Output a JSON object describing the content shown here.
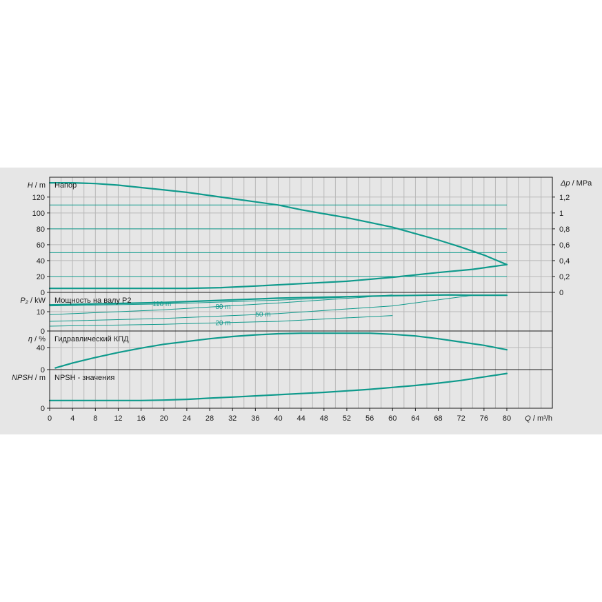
{
  "chart_data": {
    "type": "line",
    "x_axis": {
      "label_italic": "Q",
      "label_unit": "/ m³/h",
      "range": [
        0,
        80
      ],
      "ticks": [
        0,
        4,
        8,
        12,
        16,
        20,
        24,
        28,
        32,
        36,
        40,
        44,
        48,
        52,
        56,
        60,
        64,
        68,
        72,
        76,
        80
      ],
      "minor_step": 2
    },
    "grid": true,
    "panels": [
      {
        "id": "head",
        "title": "Напор",
        "y_label_italic": "H",
        "y_label_unit": "/ m",
        "ylim": [
          0,
          145
        ],
        "yticks": [
          0,
          20,
          40,
          60,
          80,
          100,
          120
        ],
        "right_axis": {
          "label_italic": "Δp",
          "label_unit": "/ MPa",
          "ylim": [
            0,
            1.45
          ],
          "ticks": [
            "0",
            "0,2",
            "0,4",
            "0,6",
            "0,8",
            "1",
            "1,2"
          ],
          "tick_values": [
            0,
            0.2,
            0.4,
            0.6,
            0.8,
            1.0,
            1.2
          ]
        },
        "series": [
          {
            "role": "main",
            "x": [
              0,
              4,
              8,
              12,
              16,
              20,
              24,
              28,
              32,
              36,
              40,
              44,
              48,
              52,
              56,
              60,
              64,
              68,
              72,
              76,
              80
            ],
            "y": [
              138,
              138,
              137,
              135,
              132,
              129,
              126,
              122,
              118,
              114,
              110,
              104,
              99,
              94,
              88,
              82,
              74,
              66,
              57,
              47,
              35
            ]
          },
          {
            "role": "aux",
            "x": [
              0,
              80
            ],
            "y": [
              110,
              110
            ]
          },
          {
            "role": "aux",
            "x": [
              0,
              80
            ],
            "y": [
              80,
              80
            ]
          },
          {
            "role": "aux",
            "x": [
              0,
              80
            ],
            "y": [
              50,
              50
            ]
          },
          {
            "role": "aux",
            "x": [
              0,
              80
            ],
            "y": [
              20,
              20
            ]
          },
          {
            "role": "main",
            "x": [
              0,
              8,
              16,
              24,
              30,
              36,
              44,
              52,
              60,
              68,
              74,
              80
            ],
            "y": [
              5,
              5,
              5,
              5,
              6,
              8,
              11,
              14,
              19,
              25,
              29,
              35
            ]
          }
        ]
      },
      {
        "id": "power",
        "title": "Мощность на валу P2",
        "y_label_italic": "P₂",
        "y_label_unit": "/ kW",
        "ylim": [
          0,
          20
        ],
        "yticks": [
          0,
          10
        ],
        "series": [
          {
            "role": "main",
            "label": "",
            "x": [
              0,
              20,
              40,
              60,
              70,
              74,
              80
            ],
            "y": [
              13.5,
              14.8,
              17.0,
              18.3,
              18.7,
              18.5,
              18.5
            ]
          },
          {
            "role": "aux",
            "label": "110 m",
            "label_x": 18,
            "x": [
              0,
              20,
              40,
              60,
              73,
              80
            ],
            "y": [
              13.0,
              14.0,
              16.0,
              18.5,
              18.7,
              18.7
            ]
          },
          {
            "role": "aux",
            "label": "80 m",
            "label_x": 29,
            "x": [
              0,
              20,
              40,
              55,
              60
            ],
            "y": [
              8.5,
              11.0,
              14.5,
              17.5,
              18.7
            ]
          },
          {
            "role": "aux",
            "label": "50 m",
            "label_x": 36,
            "x": [
              0,
              20,
              40,
              60,
              74
            ],
            "y": [
              5.0,
              6.5,
              9.0,
              13.0,
              18.5
            ]
          },
          {
            "role": "aux",
            "label": "20 m",
            "label_x": 29,
            "x": [
              0,
              20,
              40,
              60
            ],
            "y": [
              2.5,
              3.5,
              5.0,
              8.0
            ]
          }
        ]
      },
      {
        "id": "eta",
        "title": "Гидравлический КПД",
        "y_label_italic": "η",
        "y_label_unit": "/ %",
        "ylim": [
          0,
          70
        ],
        "yticks": [
          0,
          40
        ],
        "series": [
          {
            "role": "main",
            "x": [
              1,
              4,
              8,
              12,
              16,
              20,
              24,
              28,
              32,
              36,
              40,
              44,
              48,
              52,
              56,
              60,
              64,
              68,
              72,
              76,
              80
            ],
            "y": [
              3,
              12,
              22,
              31,
              39,
              46,
              51,
              56,
              60,
              63,
              65,
              66,
              66,
              66,
              66,
              64,
              61,
              56,
              50,
              44,
              36
            ]
          }
        ]
      },
      {
        "id": "npsh",
        "title": "NPSH - значения",
        "y_label_italic": "NPSH",
        "y_label_unit": "/ m",
        "ylim": [
          0,
          10
        ],
        "yticks": [
          0
        ],
        "series": [
          {
            "role": "main",
            "x": [
              0,
              8,
              16,
              20,
              24,
              28,
              32,
              36,
              40,
              44,
              48,
              52,
              56,
              60,
              64,
              68,
              72,
              76,
              80
            ],
            "y": [
              2.0,
              2.0,
              2.0,
              2.1,
              2.3,
              2.6,
              2.9,
              3.2,
              3.5,
              3.8,
              4.1,
              4.5,
              4.9,
              5.4,
              5.9,
              6.5,
              7.2,
              8.1,
              9.0
            ]
          }
        ]
      }
    ]
  }
}
